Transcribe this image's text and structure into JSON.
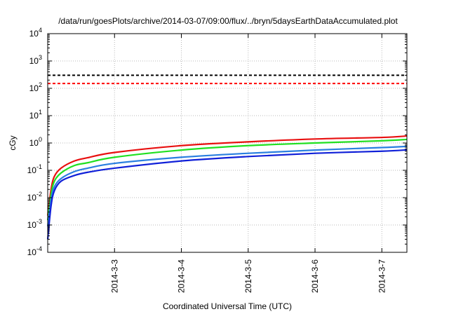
{
  "chart_data": {
    "type": "line",
    "title": "/data/run/goesPlots/archive/2014-03-07/09:00/flux/../bryn/5daysEarthDataAccumulated.plot",
    "xlabel": "Coordinated Universal Time (UTC)",
    "ylabel": "cGy",
    "x_scale": "time",
    "xlim": [
      "2014-03-02 00:00",
      "2014-03-07 09:00"
    ],
    "x_ticks": [
      "2014-3-3",
      "2014-3-4",
      "2014-3-5",
      "2014-3-6",
      "2014-3-7"
    ],
    "y_scale": "log",
    "ylim": [
      0.0001,
      10000
    ],
    "y_ticks": [
      {
        "value": 0.0001,
        "base": "10",
        "exp": "-4"
      },
      {
        "value": 0.001,
        "base": "10",
        "exp": "-3"
      },
      {
        "value": 0.01,
        "base": "10",
        "exp": "-2"
      },
      {
        "value": 0.1,
        "base": "10",
        "exp": "-1"
      },
      {
        "value": 1,
        "base": "10",
        "exp": "0"
      },
      {
        "value": 10,
        "base": "10",
        "exp": "1"
      },
      {
        "value": 100,
        "base": "10",
        "exp": "2"
      },
      {
        "value": 1000,
        "base": "10",
        "exp": "3"
      },
      {
        "value": 10000,
        "base": "10",
        "exp": "4"
      }
    ],
    "grid": true,
    "reference_lines": [
      {
        "y": 300,
        "color": "#000000",
        "style": "dashed"
      },
      {
        "y": 150,
        "color": "#ff0000",
        "style": "dashed"
      }
    ],
    "series": [
      {
        "color": "#e81010",
        "points": [
          [
            "2014-03-02 00:00",
            0.0022
          ],
          [
            "2014-03-02 01:12",
            0.02
          ],
          [
            "2014-03-02 02:24",
            0.06
          ],
          [
            "2014-03-02 04:48",
            0.12
          ],
          [
            "2014-03-02 09:36",
            0.22
          ],
          [
            "2014-03-02 14:24",
            0.29
          ],
          [
            "2014-03-03 00:00",
            0.45
          ],
          [
            "2014-03-04 00:00",
            0.8
          ],
          [
            "2014-03-05 00:00",
            1.1
          ],
          [
            "2014-03-06 00:00",
            1.4
          ],
          [
            "2014-03-07 00:00",
            1.6
          ],
          [
            "2014-03-07 09:00",
            1.8
          ]
        ]
      },
      {
        "color": "#20e020",
        "points": [
          [
            "2014-03-02 00:00",
            0.0015
          ],
          [
            "2014-03-02 01:12",
            0.013
          ],
          [
            "2014-03-02 02:24",
            0.04
          ],
          [
            "2014-03-02 04:48",
            0.08
          ],
          [
            "2014-03-02 09:36",
            0.15
          ],
          [
            "2014-03-02 14:24",
            0.19
          ],
          [
            "2014-03-03 00:00",
            0.3
          ],
          [
            "2014-03-04 00:00",
            0.55
          ],
          [
            "2014-03-05 00:00",
            0.8
          ],
          [
            "2014-03-06 00:00",
            1.0
          ],
          [
            "2014-03-07 00:00",
            1.2
          ],
          [
            "2014-03-07 09:00",
            1.35
          ]
        ]
      },
      {
        "color": "#2a7fe0",
        "points": [
          [
            "2014-03-02 00:00",
            0.0009
          ],
          [
            "2014-03-02 01:12",
            0.008
          ],
          [
            "2014-03-02 02:24",
            0.025
          ],
          [
            "2014-03-02 04:48",
            0.05
          ],
          [
            "2014-03-02 09:36",
            0.09
          ],
          [
            "2014-03-02 14:24",
            0.12
          ],
          [
            "2014-03-03 00:00",
            0.18
          ],
          [
            "2014-03-04 00:00",
            0.3
          ],
          [
            "2014-03-05 00:00",
            0.42
          ],
          [
            "2014-03-06 00:00",
            0.55
          ],
          [
            "2014-03-07 00:00",
            0.68
          ],
          [
            "2014-03-07 09:00",
            0.75
          ]
        ]
      },
      {
        "color": "#1020d8",
        "points": [
          [
            "2014-03-02 00:00",
            0.0003
          ],
          [
            "2014-03-02 01:12",
            0.005
          ],
          [
            "2014-03-02 02:24",
            0.018
          ],
          [
            "2014-03-02 04:48",
            0.04
          ],
          [
            "2014-03-02 09:36",
            0.065
          ],
          [
            "2014-03-02 14:24",
            0.085
          ],
          [
            "2014-03-03 00:00",
            0.12
          ],
          [
            "2014-03-04 00:00",
            0.22
          ],
          [
            "2014-03-05 00:00",
            0.32
          ],
          [
            "2014-03-06 00:00",
            0.42
          ],
          [
            "2014-03-07 00:00",
            0.5
          ],
          [
            "2014-03-07 09:00",
            0.56
          ]
        ]
      }
    ]
  }
}
